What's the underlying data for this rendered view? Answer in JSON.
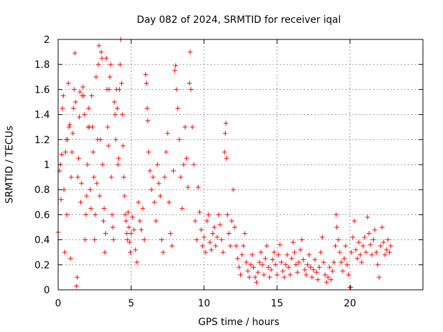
{
  "chart_data": {
    "type": "scatter",
    "title": "Day 082 of 2024, SRMTID for receiver iqal",
    "xlabel": "GPS time / hours",
    "ylabel": "SRMTID / TECUs",
    "xlim": [
      0,
      25
    ],
    "ylim": [
      0,
      2
    ],
    "grid": true,
    "x_ticks": [
      0,
      5,
      10,
      15,
      20
    ],
    "x_tick_labels": [
      "0",
      "5",
      "10",
      "15",
      "20"
    ],
    "y_ticks": [
      0,
      0.2,
      0.4,
      0.6,
      0.8,
      1,
      1.2,
      1.4,
      1.6,
      1.8,
      2
    ],
    "y_tick_labels": [
      "0",
      "0.2",
      "0.4",
      "0.6",
      "0.8",
      "1",
      "1.2",
      "1.4",
      "1.6",
      "1.8",
      "2"
    ],
    "marker": "plus",
    "color": "#ff0000",
    "series": [
      {
        "name": "SRMTID",
        "points": [
          [
            0.0,
            0.46
          ],
          [
            0.1,
            0.95
          ],
          [
            0.15,
            1.0
          ],
          [
            0.2,
            0.72
          ],
          [
            0.25,
            1.08
          ],
          [
            0.3,
            1.45
          ],
          [
            0.35,
            1.55
          ],
          [
            0.4,
            0.8
          ],
          [
            0.45,
            0.3
          ],
          [
            0.5,
            1.1
          ],
          [
            0.55,
            1.2
          ],
          [
            0.6,
            0.6
          ],
          [
            0.65,
            1.2
          ],
          [
            0.7,
            1.65
          ],
          [
            0.75,
            1.3
          ],
          [
            0.8,
            1.32
          ],
          [
            0.85,
            0.25
          ],
          [
            0.9,
            0.9
          ],
          [
            0.95,
            1.1
          ],
          [
            1.0,
            1.25
          ],
          [
            1.05,
            1.45
          ],
          [
            1.1,
            1.6
          ],
          [
            1.15,
            1.89
          ],
          [
            1.2,
            1.5
          ],
          [
            1.25,
            0.03
          ],
          [
            1.3,
            0.1
          ],
          [
            1.35,
            0.9
          ],
          [
            1.4,
            1.05
          ],
          [
            1.45,
            1.38
          ],
          [
            1.5,
            1.58
          ],
          [
            1.55,
            0.7
          ],
          [
            1.6,
            0.85
          ],
          [
            1.65,
            1.55
          ],
          [
            1.7,
            1.62
          ],
          [
            1.75,
            1.55
          ],
          [
            1.8,
            1.4
          ],
          [
            1.85,
            0.4
          ],
          [
            1.9,
            0.6
          ],
          [
            1.95,
            0.75
          ],
          [
            2.0,
            1.0
          ],
          [
            2.05,
            1.3
          ],
          [
            2.1,
            1.45
          ],
          [
            2.15,
            1.3
          ],
          [
            2.2,
            0.8
          ],
          [
            2.25,
            0.65
          ],
          [
            2.3,
            1.55
          ],
          [
            2.35,
            1.3
          ],
          [
            2.4,
            1.1
          ],
          [
            2.45,
            0.9
          ],
          [
            2.5,
            0.4
          ],
          [
            2.55,
            0.6
          ],
          [
            2.6,
            1.7
          ],
          [
            2.65,
            0.85
          ],
          [
            2.7,
            1.2
          ],
          [
            2.75,
            1.8
          ],
          [
            2.8,
            1.95
          ],
          [
            2.85,
            0.75
          ],
          [
            2.9,
            1.2
          ],
          [
            2.95,
            1.9
          ],
          [
            3.0,
            1.85
          ],
          [
            3.05,
            1.0
          ],
          [
            3.1,
            0.55
          ],
          [
            3.15,
            0.65
          ],
          [
            3.2,
            0.3
          ],
          [
            3.25,
            0.45
          ],
          [
            3.3,
            1.85
          ],
          [
            3.35,
            1.6
          ],
          [
            3.4,
            1.3
          ],
          [
            3.45,
            1.15
          ],
          [
            3.5,
            1.6
          ],
          [
            3.55,
            1.7
          ],
          [
            3.6,
            1.8
          ],
          [
            3.65,
            0.9
          ],
          [
            3.7,
            0.6
          ],
          [
            3.75,
            0.5
          ],
          [
            3.8,
            0.4
          ],
          [
            3.85,
            1.5
          ],
          [
            3.9,
            1.4
          ],
          [
            3.95,
            1.2
          ],
          [
            4.0,
            1.6
          ],
          [
            4.05,
            1.45
          ],
          [
            4.1,
            1.0
          ],
          [
            4.15,
            1.05
          ],
          [
            4.2,
            1.6
          ],
          [
            4.25,
            1.8
          ],
          [
            4.3,
            2.0
          ],
          [
            4.35,
            1.65
          ],
          [
            4.4,
            1.4
          ],
          [
            4.45,
            1.15
          ],
          [
            4.5,
            0.9
          ],
          [
            4.55,
            0.75
          ],
          [
            4.6,
            0.6
          ],
          [
            4.65,
            0.55
          ],
          [
            4.7,
            0.45
          ],
          [
            4.75,
            0.4
          ],
          [
            4.8,
            0.62
          ],
          [
            4.85,
            0.5
          ],
          [
            4.9,
            0.38
          ],
          [
            4.95,
            0.3
          ],
          [
            5.0,
            0.45
          ],
          [
            5.1,
            0.58
          ],
          [
            5.2,
            0.48
          ],
          [
            5.3,
            0.32
          ],
          [
            5.4,
            0.22
          ],
          [
            5.5,
            0.7
          ],
          [
            5.6,
            0.55
          ],
          [
            5.7,
            0.48
          ],
          [
            5.8,
            0.65
          ],
          [
            5.9,
            0.4
          ],
          [
            6.0,
            1.72
          ],
          [
            6.05,
            1.65
          ],
          [
            6.1,
            1.45
          ],
          [
            6.15,
            1.35
          ],
          [
            6.2,
            1.1
          ],
          [
            6.3,
            0.95
          ],
          [
            6.4,
            0.8
          ],
          [
            6.5,
            0.9
          ],
          [
            6.6,
            0.7
          ],
          [
            6.7,
            0.55
          ],
          [
            6.8,
            1.0
          ],
          [
            6.9,
            0.85
          ],
          [
            7.0,
            0.75
          ],
          [
            7.1,
            0.4
          ],
          [
            7.2,
            0.3
          ],
          [
            7.3,
            0.9
          ],
          [
            7.4,
            1.1
          ],
          [
            7.5,
            1.25
          ],
          [
            7.6,
            0.7
          ],
          [
            7.7,
            0.45
          ],
          [
            7.8,
            0.35
          ],
          [
            7.9,
            0.95
          ],
          [
            8.0,
            1.75
          ],
          [
            8.05,
            1.79
          ],
          [
            8.1,
            1.6
          ],
          [
            8.2,
            1.45
          ],
          [
            8.3,
            1.2
          ],
          [
            8.4,
            0.9
          ],
          [
            8.5,
            0.65
          ],
          [
            8.6,
            1.0
          ],
          [
            8.7,
            1.3
          ],
          [
            8.8,
            1.05
          ],
          [
            8.9,
            0.82
          ],
          [
            9.0,
            1.65
          ],
          [
            9.05,
            1.9
          ],
          [
            9.1,
            1.6
          ],
          [
            9.2,
            1.3
          ],
          [
            9.3,
            1.0
          ],
          [
            9.4,
            0.55
          ],
          [
            9.5,
            0.4
          ],
          [
            9.6,
            0.82
          ],
          [
            9.7,
            0.62
          ],
          [
            9.8,
            0.48
          ],
          [
            9.9,
            0.35
          ],
          [
            10.0,
            0.42
          ],
          [
            10.1,
            0.3
          ],
          [
            10.2,
            0.55
          ],
          [
            10.3,
            0.6
          ],
          [
            10.4,
            0.38
          ],
          [
            10.5,
            0.32
          ],
          [
            10.6,
            0.45
          ],
          [
            10.7,
            0.5
          ],
          [
            10.8,
            0.35
          ],
          [
            10.9,
            0.42
          ],
          [
            11.0,
            0.6
          ],
          [
            11.1,
            0.52
          ],
          [
            11.2,
            0.4
          ],
          [
            11.3,
            0.3
          ],
          [
            11.4,
            1.1
          ],
          [
            11.45,
            1.25
          ],
          [
            11.5,
            1.33
          ],
          [
            11.55,
            1.05
          ],
          [
            11.6,
            0.6
          ],
          [
            11.7,
            0.45
          ],
          [
            11.8,
            0.35
          ],
          [
            11.9,
            0.55
          ],
          [
            12.0,
            0.8
          ],
          [
            12.1,
            0.5
          ],
          [
            12.2,
            0.35
          ],
          [
            12.3,
            0.25
          ],
          [
            12.4,
            0.18
          ],
          [
            12.5,
            0.12
          ],
          [
            12.6,
            0.28
          ],
          [
            12.7,
            0.35
          ],
          [
            12.8,
            0.45
          ],
          [
            12.9,
            0.22
          ],
          [
            13.0,
            0.15
          ],
          [
            13.1,
            0.1
          ],
          [
            13.2,
            0.2
          ],
          [
            13.3,
            0.28
          ],
          [
            13.4,
            0.18
          ],
          [
            13.5,
            0.1
          ],
          [
            13.6,
            0.06
          ],
          [
            13.7,
            0.14
          ],
          [
            13.8,
            0.22
          ],
          [
            13.9,
            0.3
          ],
          [
            14.0,
            0.2
          ],
          [
            14.1,
            0.12
          ],
          [
            14.2,
            0.25
          ],
          [
            14.3,
            0.35
          ],
          [
            14.4,
            0.18
          ],
          [
            14.5,
            0.1
          ],
          [
            14.6,
            0.16
          ],
          [
            14.7,
            0.24
          ],
          [
            14.8,
            0.3
          ],
          [
            14.9,
            0.2
          ],
          [
            15.0,
            0.12
          ],
          [
            15.1,
            0.28
          ],
          [
            15.2,
            0.36
          ],
          [
            15.3,
            0.22
          ],
          [
            15.4,
            0.15
          ],
          [
            15.5,
            0.1
          ],
          [
            15.6,
            0.2
          ],
          [
            15.7,
            0.28
          ],
          [
            15.8,
            0.18
          ],
          [
            15.9,
            0.12
          ],
          [
            16.0,
            0.25
          ],
          [
            16.1,
            0.38
          ],
          [
            16.2,
            0.3
          ],
          [
            16.3,
            0.2
          ],
          [
            16.4,
            0.14
          ],
          [
            16.5,
            0.22
          ],
          [
            16.6,
            0.32
          ],
          [
            16.7,
            0.4
          ],
          [
            16.8,
            0.24
          ],
          [
            16.9,
            0.16
          ],
          [
            17.0,
            0.12
          ],
          [
            17.1,
            0.2
          ],
          [
            17.2,
            0.28
          ],
          [
            17.3,
            0.18
          ],
          [
            17.4,
            0.1
          ],
          [
            17.5,
            0.16
          ],
          [
            17.6,
            0.24
          ],
          [
            17.7,
            0.14
          ],
          [
            17.8,
            0.08
          ],
          [
            17.9,
            0.18
          ],
          [
            18.0,
            0.3
          ],
          [
            18.1,
            0.42
          ],
          [
            18.2,
            0.22
          ],
          [
            18.3,
            0.12
          ],
          [
            18.4,
            0.06
          ],
          [
            18.5,
            0.1
          ],
          [
            18.6,
            0.18
          ],
          [
            18.7,
            0.08
          ],
          [
            18.8,
            0.15
          ],
          [
            18.9,
            0.22
          ],
          [
            19.0,
            0.35
          ],
          [
            19.05,
            0.6
          ],
          [
            19.1,
            0.5
          ],
          [
            19.2,
            0.4
          ],
          [
            19.3,
            0.3
          ],
          [
            19.4,
            0.22
          ],
          [
            19.5,
            0.15
          ],
          [
            19.6,
            0.25
          ],
          [
            19.7,
            0.35
          ],
          [
            19.8,
            0.2
          ],
          [
            19.9,
            0.12
          ],
          [
            20.0,
            0.02
          ],
          [
            20.05,
            0.02
          ],
          [
            20.1,
            0.3
          ],
          [
            20.2,
            0.42
          ],
          [
            20.3,
            0.55
          ],
          [
            20.4,
            0.32
          ],
          [
            20.5,
            0.25
          ],
          [
            20.6,
            0.38
          ],
          [
            20.7,
            0.28
          ],
          [
            20.8,
            0.22
          ],
          [
            20.9,
            0.35
          ],
          [
            21.0,
            0.42
          ],
          [
            21.1,
            0.3
          ],
          [
            21.2,
            0.58
          ],
          [
            21.3,
            0.45
          ],
          [
            21.4,
            0.36
          ],
          [
            21.5,
            0.28
          ],
          [
            21.6,
            0.4
          ],
          [
            21.7,
            0.48
          ],
          [
            21.8,
            0.3
          ],
          [
            21.9,
            0.2
          ],
          [
            22.0,
            0.1
          ],
          [
            22.1,
            0.35
          ],
          [
            22.2,
            0.5
          ],
          [
            22.3,
            0.38
          ],
          [
            22.4,
            0.28
          ],
          [
            22.5,
            0.32
          ],
          [
            22.6,
            0.4
          ],
          [
            22.7,
            0.3
          ],
          [
            22.8,
            0.35
          ]
        ]
      }
    ]
  }
}
